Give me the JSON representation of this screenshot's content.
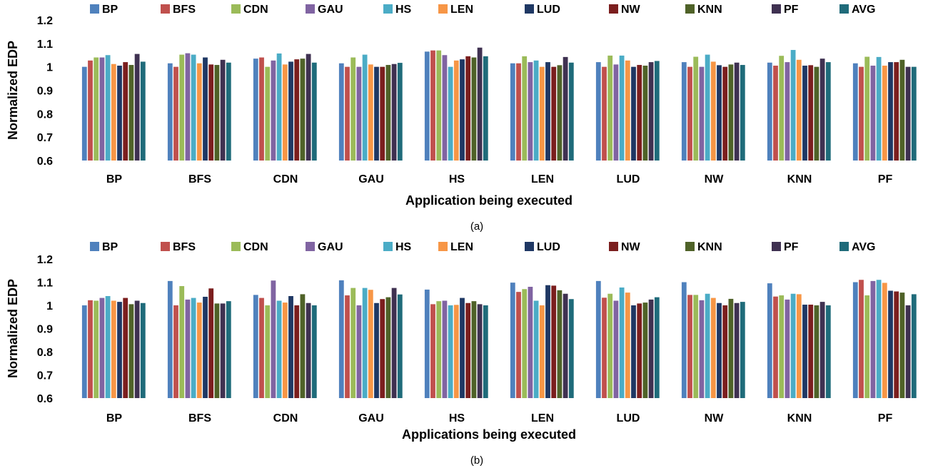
{
  "colors": {
    "BP": "#4f81bd",
    "BFS": "#c0504d",
    "CDN": "#9bbb59",
    "GAU": "#8064a2",
    "HS": "#4bacc6",
    "LEN": "#f79646",
    "LUD": "#1f3864",
    "NW": "#7b1e1e",
    "KNN": "#4f6228",
    "PF": "#3f3151",
    "AVG": "#1f6b7a"
  },
  "chart_data": [
    {
      "type": "bar",
      "panel_label": "(a)",
      "xlabel": "Application being executed",
      "ylabel": "Normalized EDP",
      "ylim": [
        0.6,
        1.2
      ],
      "yticks": [
        0.6,
        0.7,
        0.8,
        0.9,
        1,
        1.1,
        1.2
      ],
      "grid": false,
      "legend": "top",
      "categories": [
        "BP",
        "BFS",
        "CDN",
        "GAU",
        "HS",
        "LEN",
        "LUD",
        "NW",
        "KNN",
        "PF"
      ],
      "series": [
        {
          "name": "BP",
          "values": [
            1.0,
            1.015,
            1.035,
            1.015,
            1.065,
            1.015,
            1.02,
            1.02,
            1.018,
            1.015
          ]
        },
        {
          "name": "BFS",
          "values": [
            1.027,
            1.0,
            1.04,
            1.0,
            1.07,
            1.015,
            1.0,
            1.0,
            1.005,
            1.0
          ]
        },
        {
          "name": "CDN",
          "values": [
            1.04,
            1.052,
            1.0,
            1.04,
            1.07,
            1.045,
            1.048,
            1.043,
            1.047,
            1.043
          ]
        },
        {
          "name": "GAU",
          "values": [
            1.04,
            1.058,
            1.027,
            1.0,
            1.05,
            1.02,
            1.01,
            1.0,
            1.02,
            1.005
          ]
        },
        {
          "name": "HS",
          "values": [
            1.05,
            1.052,
            1.057,
            1.052,
            1.0,
            1.027,
            1.048,
            1.052,
            1.072,
            1.042
          ]
        },
        {
          "name": "LEN",
          "values": [
            1.012,
            1.015,
            1.01,
            1.01,
            1.027,
            1.0,
            1.027,
            1.022,
            1.03,
            1.005
          ]
        },
        {
          "name": "LUD",
          "values": [
            1.005,
            1.04,
            1.022,
            1.0,
            1.032,
            1.02,
            1.0,
            1.007,
            1.005,
            1.02
          ]
        },
        {
          "name": "NW",
          "values": [
            1.02,
            1.01,
            1.032,
            1.0,
            1.045,
            1.0,
            1.008,
            1.0,
            1.007,
            1.02
          ]
        },
        {
          "name": "KNN",
          "values": [
            1.008,
            1.008,
            1.035,
            1.008,
            1.04,
            1.007,
            1.005,
            1.01,
            1.0,
            1.03
          ]
        },
        {
          "name": "PF",
          "values": [
            1.055,
            1.03,
            1.055,
            1.012,
            1.082,
            1.042,
            1.02,
            1.018,
            1.035,
            1.0
          ]
        },
        {
          "name": "AVG",
          "values": [
            1.022,
            1.018,
            1.018,
            1.017,
            1.045,
            1.018,
            1.025,
            1.008,
            1.02,
            1.0
          ]
        }
      ]
    },
    {
      "type": "bar",
      "panel_label": "(b)",
      "xlabel": "Applications being executed",
      "ylabel": "Normalized EDP",
      "ylim": [
        0.6,
        1.2
      ],
      "yticks": [
        0.6,
        0.7,
        0.8,
        0.9,
        1,
        1.1,
        1.2
      ],
      "grid": false,
      "legend": "top",
      "categories": [
        "BP",
        "BFS",
        "CDN",
        "GAU",
        "HS",
        "LEN",
        "LUD",
        "NW",
        "KNN",
        "PF"
      ],
      "series": [
        {
          "name": "BP",
          "values": [
            1.0,
            1.105,
            1.045,
            1.108,
            1.068,
            1.098,
            1.105,
            1.1,
            1.095,
            1.1
          ]
        },
        {
          "name": "BFS",
          "values": [
            1.022,
            1.0,
            1.032,
            1.043,
            1.005,
            1.058,
            1.033,
            1.045,
            1.038,
            1.11
          ]
        },
        {
          "name": "CDN",
          "values": [
            1.02,
            1.083,
            1.0,
            1.075,
            1.018,
            1.07,
            1.05,
            1.045,
            1.043,
            1.043
          ]
        },
        {
          "name": "GAU",
          "values": [
            1.032,
            1.025,
            1.107,
            1.0,
            1.02,
            1.08,
            1.02,
            1.022,
            1.025,
            1.105
          ]
        },
        {
          "name": "HS",
          "values": [
            1.04,
            1.032,
            1.02,
            1.075,
            1.0,
            1.02,
            1.077,
            1.05,
            1.05,
            1.11
          ]
        },
        {
          "name": "LEN",
          "values": [
            1.02,
            1.012,
            1.012,
            1.067,
            1.002,
            1.0,
            1.055,
            1.032,
            1.048,
            1.097
          ]
        },
        {
          "name": "LUD",
          "values": [
            1.015,
            1.037,
            1.04,
            1.01,
            1.032,
            1.087,
            1.0,
            1.01,
            1.003,
            1.063
          ]
        },
        {
          "name": "NW",
          "values": [
            1.032,
            1.073,
            1.0,
            1.027,
            1.01,
            1.085,
            1.008,
            1.0,
            1.003,
            1.06
          ]
        },
        {
          "name": "KNN",
          "values": [
            1.005,
            1.008,
            1.048,
            1.035,
            1.018,
            1.065,
            1.012,
            1.028,
            1.0,
            1.055
          ]
        },
        {
          "name": "PF",
          "values": [
            1.02,
            1.008,
            1.01,
            1.075,
            1.005,
            1.05,
            1.025,
            1.01,
            1.015,
            1.0
          ]
        },
        {
          "name": "AVG",
          "values": [
            1.01,
            1.018,
            1.0,
            1.047,
            1.0,
            1.027,
            1.035,
            1.015,
            1.0,
            1.048
          ]
        }
      ]
    }
  ]
}
